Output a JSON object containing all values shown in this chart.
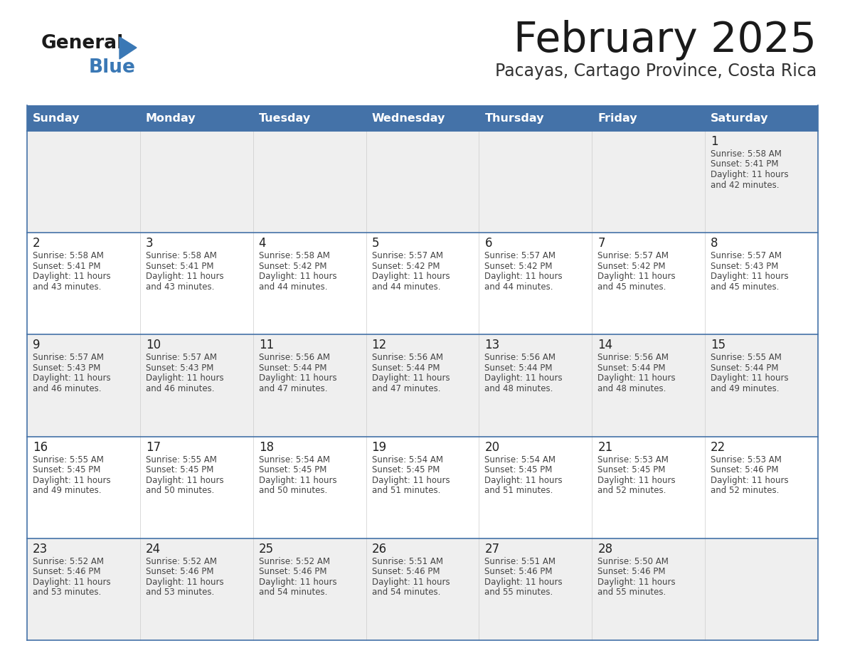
{
  "title": "February 2025",
  "subtitle": "Pacayas, Cartago Province, Costa Rica",
  "header_color": "#4472a8",
  "header_text_color": "#ffffff",
  "cell_bg_light": "#efefef",
  "cell_bg_white": "#ffffff",
  "border_color": "#4472a8",
  "title_color": "#1a1a1a",
  "subtitle_color": "#333333",
  "day_number_color": "#222222",
  "day_detail_color": "#444444",
  "days_of_week": [
    "Sunday",
    "Monday",
    "Tuesday",
    "Wednesday",
    "Thursday",
    "Friday",
    "Saturday"
  ],
  "row_backgrounds": [
    "#efefef",
    "#ffffff",
    "#efefef",
    "#ffffff",
    "#efefef"
  ],
  "calendar": [
    [
      null,
      null,
      null,
      null,
      null,
      null,
      1
    ],
    [
      2,
      3,
      4,
      5,
      6,
      7,
      8
    ],
    [
      9,
      10,
      11,
      12,
      13,
      14,
      15
    ],
    [
      16,
      17,
      18,
      19,
      20,
      21,
      22
    ],
    [
      23,
      24,
      25,
      26,
      27,
      28,
      null
    ]
  ],
  "day_data": {
    "1": {
      "sunrise": "5:58 AM",
      "sunset": "5:41 PM",
      "daylight_hours": 11,
      "daylight_minutes": 42
    },
    "2": {
      "sunrise": "5:58 AM",
      "sunset": "5:41 PM",
      "daylight_hours": 11,
      "daylight_minutes": 43
    },
    "3": {
      "sunrise": "5:58 AM",
      "sunset": "5:41 PM",
      "daylight_hours": 11,
      "daylight_minutes": 43
    },
    "4": {
      "sunrise": "5:58 AM",
      "sunset": "5:42 PM",
      "daylight_hours": 11,
      "daylight_minutes": 44
    },
    "5": {
      "sunrise": "5:57 AM",
      "sunset": "5:42 PM",
      "daylight_hours": 11,
      "daylight_minutes": 44
    },
    "6": {
      "sunrise": "5:57 AM",
      "sunset": "5:42 PM",
      "daylight_hours": 11,
      "daylight_minutes": 44
    },
    "7": {
      "sunrise": "5:57 AM",
      "sunset": "5:42 PM",
      "daylight_hours": 11,
      "daylight_minutes": 45
    },
    "8": {
      "sunrise": "5:57 AM",
      "sunset": "5:43 PM",
      "daylight_hours": 11,
      "daylight_minutes": 45
    },
    "9": {
      "sunrise": "5:57 AM",
      "sunset": "5:43 PM",
      "daylight_hours": 11,
      "daylight_minutes": 46
    },
    "10": {
      "sunrise": "5:57 AM",
      "sunset": "5:43 PM",
      "daylight_hours": 11,
      "daylight_minutes": 46
    },
    "11": {
      "sunrise": "5:56 AM",
      "sunset": "5:44 PM",
      "daylight_hours": 11,
      "daylight_minutes": 47
    },
    "12": {
      "sunrise": "5:56 AM",
      "sunset": "5:44 PM",
      "daylight_hours": 11,
      "daylight_minutes": 47
    },
    "13": {
      "sunrise": "5:56 AM",
      "sunset": "5:44 PM",
      "daylight_hours": 11,
      "daylight_minutes": 48
    },
    "14": {
      "sunrise": "5:56 AM",
      "sunset": "5:44 PM",
      "daylight_hours": 11,
      "daylight_minutes": 48
    },
    "15": {
      "sunrise": "5:55 AM",
      "sunset": "5:44 PM",
      "daylight_hours": 11,
      "daylight_minutes": 49
    },
    "16": {
      "sunrise": "5:55 AM",
      "sunset": "5:45 PM",
      "daylight_hours": 11,
      "daylight_minutes": 49
    },
    "17": {
      "sunrise": "5:55 AM",
      "sunset": "5:45 PM",
      "daylight_hours": 11,
      "daylight_minutes": 50
    },
    "18": {
      "sunrise": "5:54 AM",
      "sunset": "5:45 PM",
      "daylight_hours": 11,
      "daylight_minutes": 50
    },
    "19": {
      "sunrise": "5:54 AM",
      "sunset": "5:45 PM",
      "daylight_hours": 11,
      "daylight_minutes": 51
    },
    "20": {
      "sunrise": "5:54 AM",
      "sunset": "5:45 PM",
      "daylight_hours": 11,
      "daylight_minutes": 51
    },
    "21": {
      "sunrise": "5:53 AM",
      "sunset": "5:45 PM",
      "daylight_hours": 11,
      "daylight_minutes": 52
    },
    "22": {
      "sunrise": "5:53 AM",
      "sunset": "5:46 PM",
      "daylight_hours": 11,
      "daylight_minutes": 52
    },
    "23": {
      "sunrise": "5:52 AM",
      "sunset": "5:46 PM",
      "daylight_hours": 11,
      "daylight_minutes": 53
    },
    "24": {
      "sunrise": "5:52 AM",
      "sunset": "5:46 PM",
      "daylight_hours": 11,
      "daylight_minutes": 53
    },
    "25": {
      "sunrise": "5:52 AM",
      "sunset": "5:46 PM",
      "daylight_hours": 11,
      "daylight_minutes": 54
    },
    "26": {
      "sunrise": "5:51 AM",
      "sunset": "5:46 PM",
      "daylight_hours": 11,
      "daylight_minutes": 54
    },
    "27": {
      "sunrise": "5:51 AM",
      "sunset": "5:46 PM",
      "daylight_hours": 11,
      "daylight_minutes": 55
    },
    "28": {
      "sunrise": "5:50 AM",
      "sunset": "5:46 PM",
      "daylight_hours": 11,
      "daylight_minutes": 55
    }
  },
  "logo_general_color": "#1a1a1a",
  "logo_blue_color": "#3a78b5",
  "figsize": [
    11.88,
    9.18
  ],
  "dpi": 100
}
